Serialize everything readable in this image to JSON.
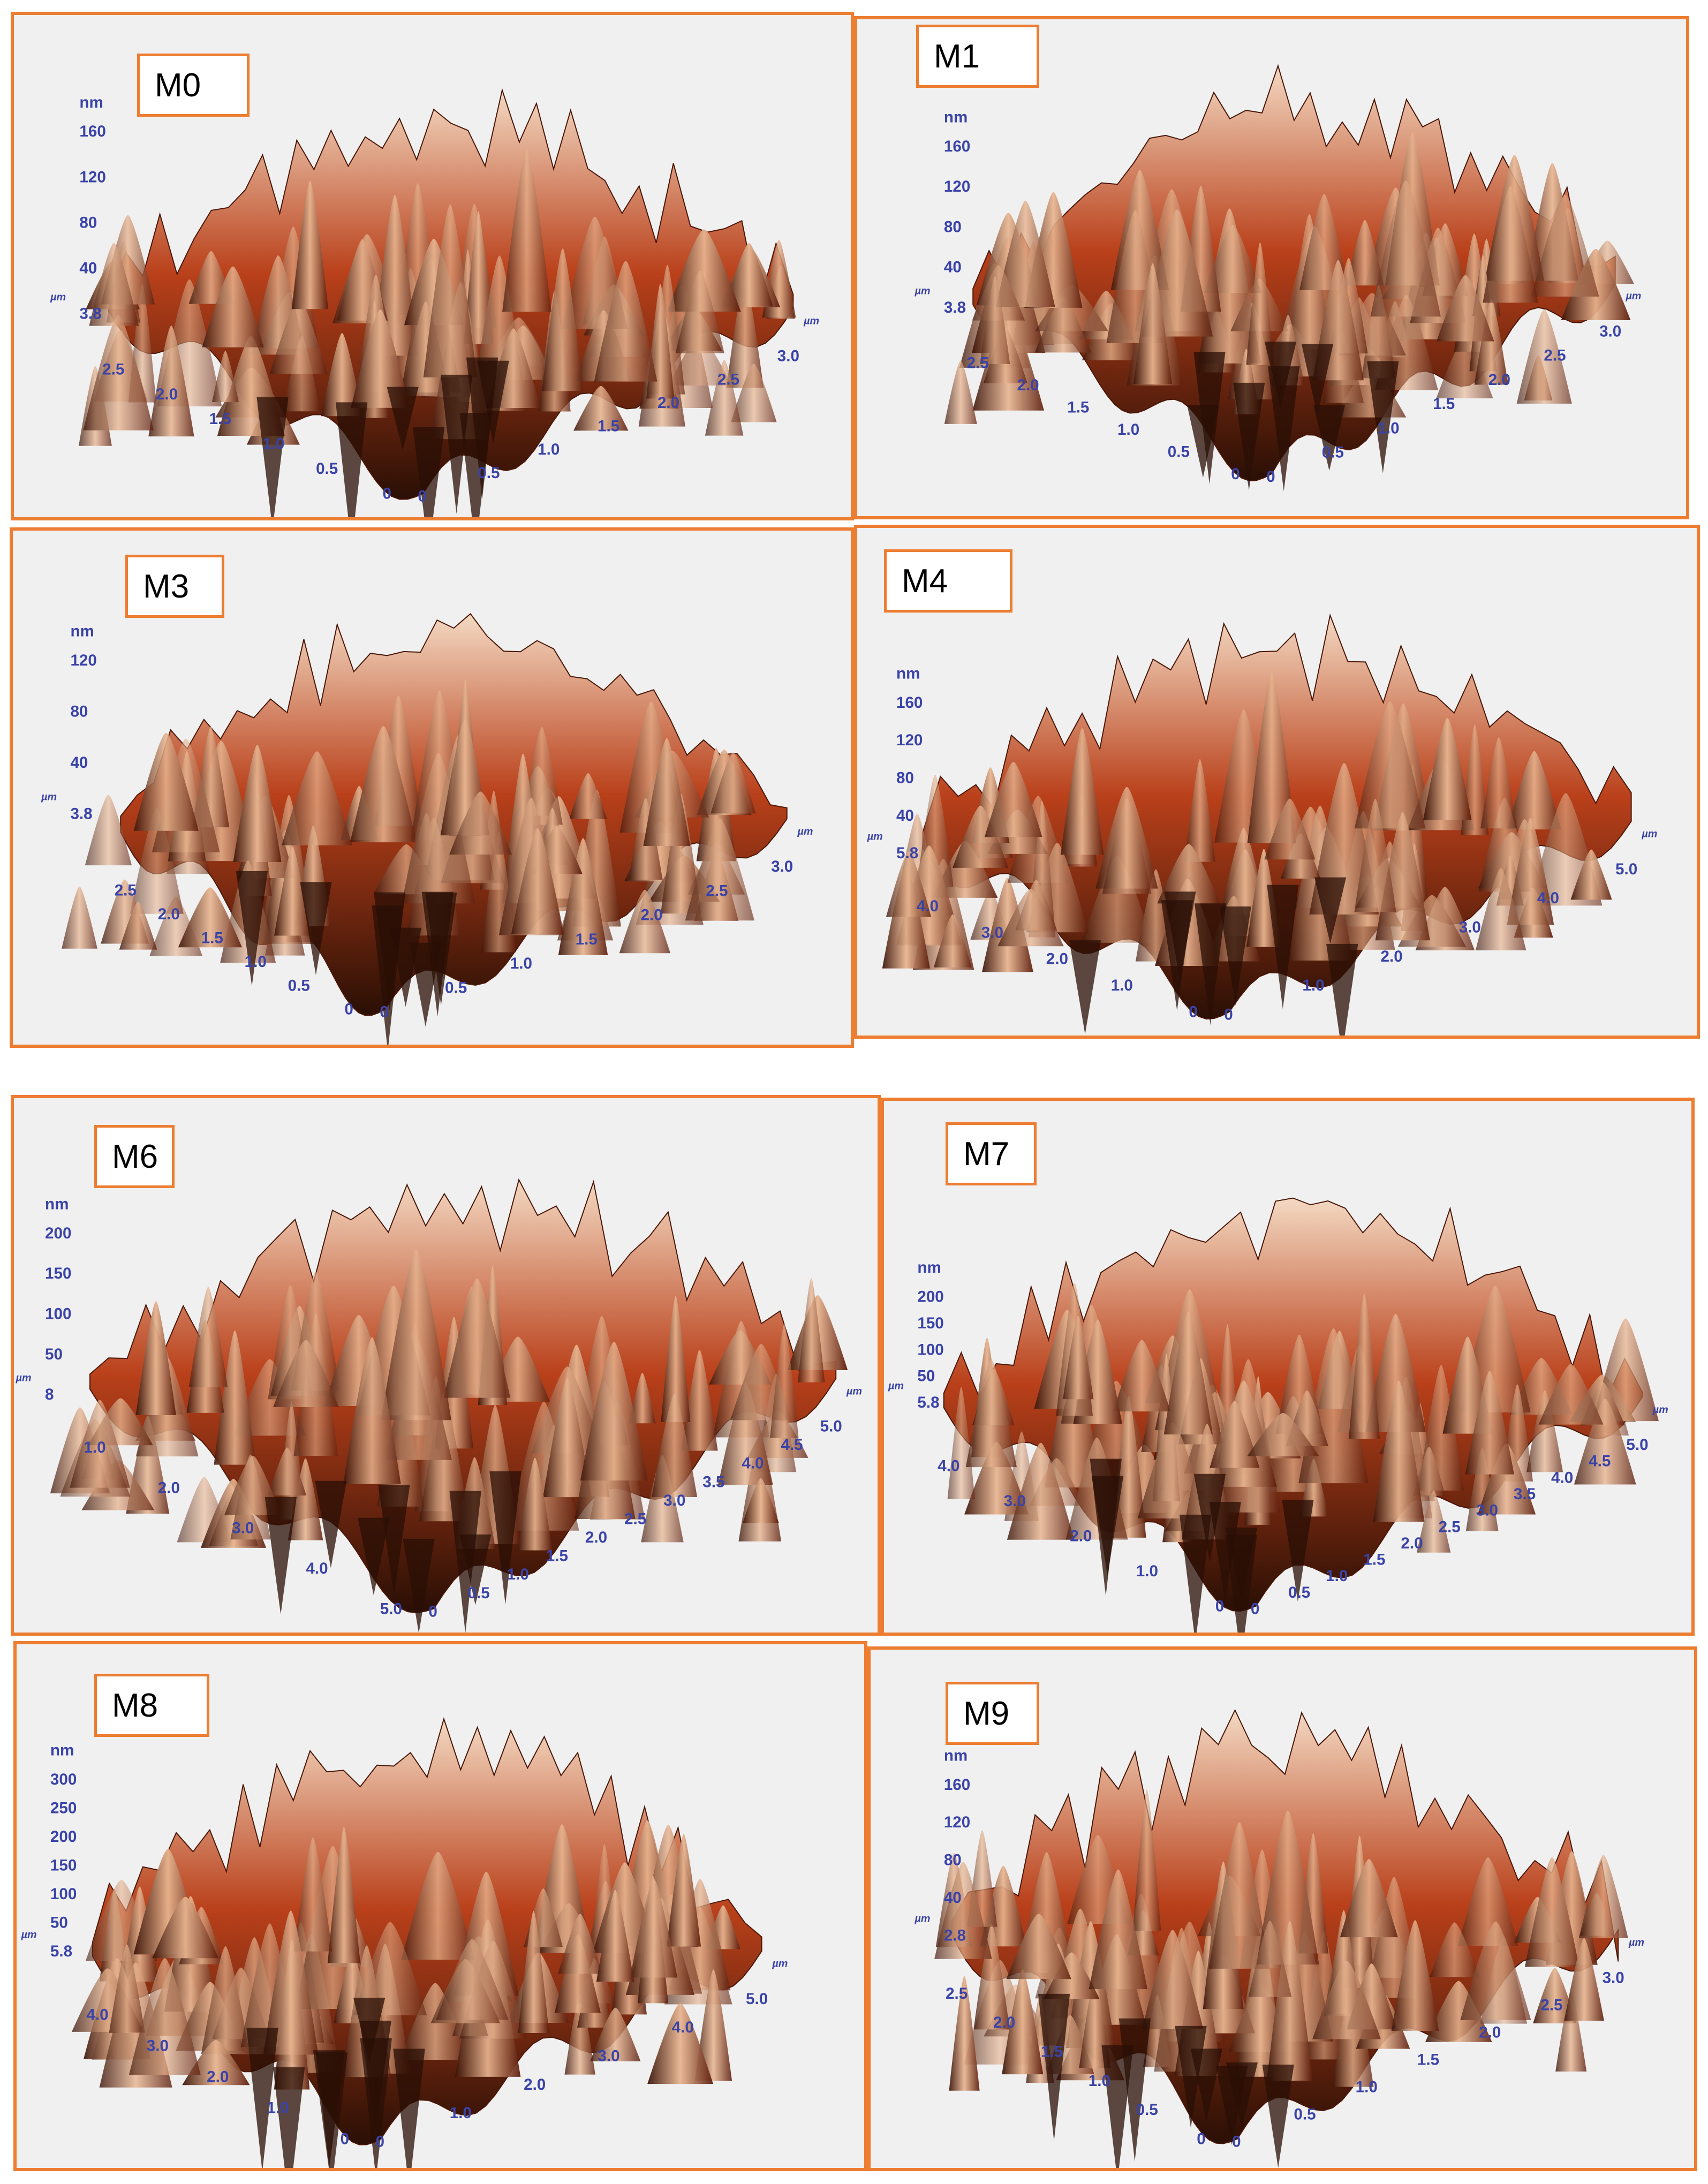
{
  "colors": {
    "frame": "#ed7d31",
    "axis_text": "#3a43a8",
    "surface_dark": "#2a0f05",
    "surface_mid": "#b9401a",
    "surface_light": "#f3d9c2"
  },
  "panels": [
    {
      "label": "M0",
      "z_unit": "nm",
      "z_ticks": [
        "160",
        "120",
        "80",
        "40",
        "3.8"
      ],
      "lateral_unit": "µm",
      "left_ticks": [
        "2.5",
        "2.0",
        "1.5",
        "1.0",
        "0.5",
        "0"
      ],
      "right_ticks": [
        "0",
        "0.5",
        "1.0",
        "1.5",
        "2.0",
        "2.5",
        "3.0"
      ]
    },
    {
      "label": "M1",
      "z_unit": "nm",
      "z_ticks": [
        "160",
        "120",
        "80",
        "40",
        "3.8"
      ],
      "lateral_unit": "µm",
      "left_ticks": [
        "2.5",
        "2.0",
        "1.5",
        "1.0",
        "0.5",
        "0"
      ],
      "right_ticks": [
        "0",
        "0.5",
        "1.0",
        "1.5",
        "2.0",
        "2.5",
        "3.0"
      ]
    },
    {
      "label": "M3",
      "z_unit": "nm",
      "z_ticks": [
        "120",
        "80",
        "40",
        "3.8"
      ],
      "lateral_unit": "µm",
      "left_ticks": [
        "2.5",
        "2.0",
        "1.5",
        "1.0",
        "0.5",
        "0"
      ],
      "right_ticks": [
        "0",
        "0.5",
        "1.0",
        "1.5",
        "2.0",
        "2.5",
        "3.0"
      ]
    },
    {
      "label": "M4",
      "z_unit": "nm",
      "z_ticks": [
        "160",
        "120",
        "80",
        "40",
        "5.8"
      ],
      "lateral_unit": "µm",
      "left_ticks": [
        "4.0",
        "3.0",
        "2.0",
        "1.0",
        "0"
      ],
      "right_ticks": [
        "0",
        "1.0",
        "2.0",
        "3.0",
        "4.0",
        "5.0"
      ]
    },
    {
      "label": "M6",
      "z_unit": "nm",
      "z_ticks": [
        "200",
        "150",
        "100",
        "50",
        "8"
      ],
      "lateral_unit": "µm",
      "left_ticks": [
        "1.0",
        "2.0",
        "3.0",
        "4.0",
        "5.0"
      ],
      "right_ticks": [
        "0",
        "0.5",
        "1.0",
        "1.5",
        "2.0",
        "2.5",
        "3.0",
        "3.5",
        "4.0",
        "4.5",
        "5.0"
      ]
    },
    {
      "label": "M7",
      "z_unit": "nm",
      "z_ticks": [
        "200",
        "150",
        "100",
        "50",
        "5.8"
      ],
      "lateral_unit": "µm",
      "left_ticks": [
        "4.0",
        "3.0",
        "2.0",
        "1.0",
        "0"
      ],
      "right_ticks": [
        "0",
        "0.5",
        "1.0",
        "1.5",
        "2.0",
        "2.5",
        "3.0",
        "3.5",
        "4.0",
        "4.5",
        "5.0"
      ]
    },
    {
      "label": "M8",
      "z_unit": "nm",
      "z_ticks": [
        "300",
        "250",
        "200",
        "150",
        "100",
        "50",
        "5.8"
      ],
      "lateral_unit": "µm",
      "left_ticks": [
        "4.0",
        "3.0",
        "2.0",
        "1.0",
        "0"
      ],
      "right_ticks": [
        "0",
        "1.0",
        "2.0",
        "3.0",
        "4.0",
        "5.0"
      ]
    },
    {
      "label": "M9",
      "z_unit": "nm",
      "z_ticks": [
        "160",
        "120",
        "80",
        "40",
        "2.8"
      ],
      "lateral_unit": "µm",
      "left_ticks": [
        "2.5",
        "2.0",
        "1.5",
        "1.0",
        "0.5",
        "0"
      ],
      "right_ticks": [
        "0",
        "0.5",
        "1.0",
        "1.5",
        "2.0",
        "2.5",
        "3.0"
      ]
    }
  ]
}
